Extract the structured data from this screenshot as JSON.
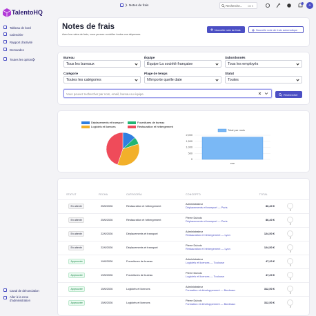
{
  "sidebar": {
    "brand": "TalentoHQ",
    "nav": [
      "Tableau de bord",
      "Calendrier",
      "Rapport d'activité",
      "Demandes",
      "Toutes les options"
    ],
    "footer": [
      "Canal de dénonciation",
      "Aller à la zone d'administration"
    ]
  },
  "topbar": {
    "breadcrumb": "Notes de frais",
    "search": "Recherche...",
    "shortcut": "Ctrl K",
    "badge": "0",
    "avatar": "A"
  },
  "header": {
    "title": "Notes de frais",
    "subtitle": "Avec les notes de frais, vous pouvez contrôler toutes vos dépenses.",
    "buttons": [
      "Nouvelle note de frais",
      "Nouvelle note de frais automatique"
    ]
  },
  "filters": {
    "fields": [
      {
        "label": "Bureau",
        "value": "Tous les bureaux"
      },
      {
        "label": "Équipe",
        "value": "Équipe La société française"
      },
      {
        "label": "Subordonnés",
        "value": "Tous les employés"
      },
      {
        "label": "Catégorie",
        "value": "Toutes les catégories"
      },
      {
        "label": "Plage de temps",
        "value": "N'importe quelle date"
      },
      {
        "label": "Statut",
        "value": "Toutes"
      }
    ],
    "search_placeholder": "Vous pouvez rechercher par nom, email, bureau ou équipe.",
    "search_button": "Rechercher"
  },
  "chart_data": [
    {
      "type": "pie",
      "categories": [
        "Déplacements et transport",
        "Fournitures de bureau",
        "Logiciels et licences",
        "Restauration et hébergement"
      ],
      "values": [
        240,
        130,
        650,
        830
      ],
      "colors": [
        "#2f7fe0",
        "#22b573",
        "#f2b02a",
        "#ef4b5a"
      ]
    },
    {
      "type": "bar",
      "categories": [
        "ene"
      ],
      "series": [
        {
          "name": "Total par mois",
          "color": "#7ab8f5",
          "values": [
            1850
          ]
        }
      ],
      "ylim": [
        0,
        2000
      ],
      "yticks": [
        0,
        500,
        {
          "value": 1000,
          "label": "1,000"
        },
        {
          "value": 1500,
          "label": "1,500"
        },
        {
          "value": 2000,
          "label": "2,000"
        }
      ],
      "grid": true
    }
  ],
  "table": {
    "columns": [
      "STATUT",
      "FECHA",
      "CATEGORÍA",
      "CONCEPTO",
      "TOTAL"
    ],
    "rows": [
      {
        "status": "En attente",
        "date": "25/6/2026",
        "category": "Restauration et hébergement",
        "person": "Administrateur",
        "concept": "Déplacements et transport — Paris",
        "total": "86,40 €"
      },
      {
        "status": "En attente",
        "date": "25/6/2026",
        "category": "Restauration et hébergement",
        "person": "Pierre Dubois",
        "concept": "Déplacements et transport — Paris",
        "total": "86,40 €"
      },
      {
        "status": "En attente",
        "date": "22/6/2026",
        "category": "Déplacements et transport",
        "person": "Administrateur",
        "concept": "Restauration et hébergement — Lyon",
        "total": "124,50 €"
      },
      {
        "status": "En attente",
        "date": "22/6/2026",
        "category": "Déplacements et transport",
        "person": "Pierre Dubois",
        "concept": "Restauration et hébergement — Lyon",
        "total": "124,50 €"
      },
      {
        "status": "Approuvée",
        "date": "19/6/2026",
        "category": "Fournitures de bureau",
        "person": "Administrateur",
        "concept": "Logiciels et licences — Toulouse",
        "total": "47,20 €"
      },
      {
        "status": "Approuvée",
        "date": "19/6/2026",
        "category": "Fournitures de bureau",
        "person": "Pierre Dubois",
        "concept": "Logiciels et licences — Toulouse",
        "total": "47,20 €"
      },
      {
        "status": "Approuvée",
        "date": "15/6/2026",
        "category": "Logiciels et licences",
        "person": "Administrateur",
        "concept": "Formation et développement — Bordeaux",
        "total": "312,50 €"
      },
      {
        "status": "Approuvée",
        "date": "15/6/2026",
        "category": "Logiciels et licences",
        "person": "Pierre Dubois",
        "concept": "Formation et développement — Bordeaux",
        "total": "312,50 €"
      }
    ]
  }
}
